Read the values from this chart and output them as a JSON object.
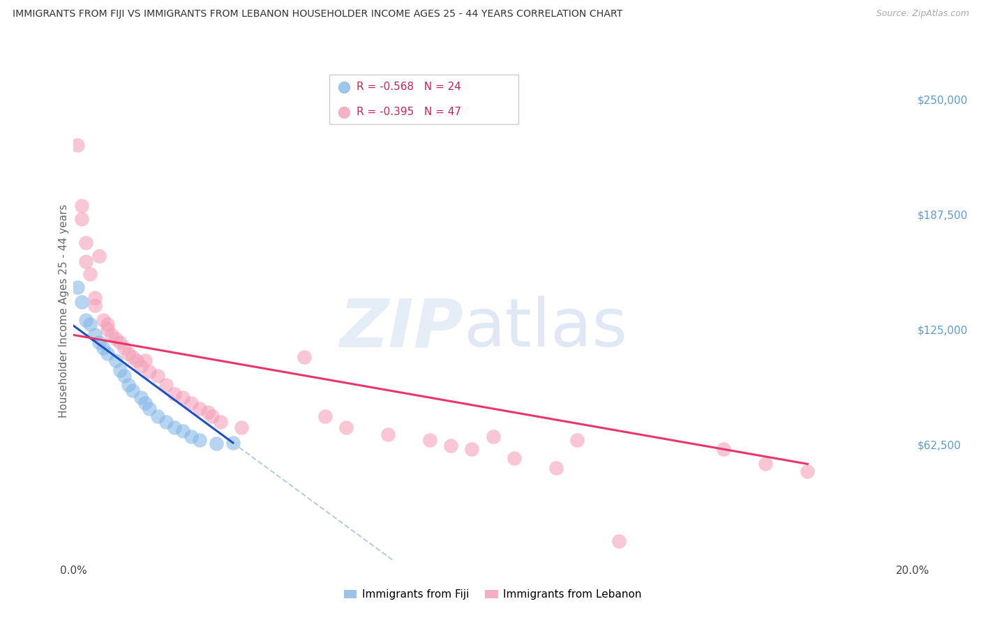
{
  "title": "IMMIGRANTS FROM FIJI VS IMMIGRANTS FROM LEBANON HOUSEHOLDER INCOME AGES 25 - 44 YEARS CORRELATION CHART",
  "source": "Source: ZipAtlas.com",
  "ylabel": "Householder Income Ages 25 - 44 years",
  "xlim": [
    0.0,
    0.2
  ],
  "ylim": [
    0,
    270000
  ],
  "yticks": [
    0,
    62500,
    125000,
    187500,
    250000
  ],
  "ytick_labels": [
    "",
    "$62,500",
    "$125,000",
    "$187,500",
    "$250,000"
  ],
  "xticks": [
    0.0,
    0.04,
    0.08,
    0.12,
    0.16,
    0.2
  ],
  "xtick_labels": [
    "0.0%",
    "",
    "",
    "",
    "",
    "20.0%"
  ],
  "fiji_R": -0.568,
  "fiji_N": 24,
  "lebanon_R": -0.395,
  "lebanon_N": 47,
  "fiji_color": "#88b8e8",
  "lebanon_color": "#f4a0b8",
  "fiji_line_color": "#1a50cc",
  "lebanon_line_color": "#e8356a",
  "dashed_line_color": "#b8cce0",
  "fiji_x": [
    0.001,
    0.002,
    0.003,
    0.004,
    0.005,
    0.006,
    0.007,
    0.008,
    0.01,
    0.011,
    0.012,
    0.013,
    0.014,
    0.016,
    0.017,
    0.018,
    0.02,
    0.022,
    0.024,
    0.026,
    0.028,
    0.03,
    0.034,
    0.038
  ],
  "fiji_y": [
    148000,
    140000,
    130000,
    128000,
    122000,
    118000,
    115000,
    112000,
    108000,
    103000,
    100000,
    95000,
    92000,
    88000,
    85000,
    82000,
    78000,
    75000,
    72000,
    70000,
    67000,
    65000,
    63000,
    63500
  ],
  "lebanon_x": [
    0.001,
    0.002,
    0.002,
    0.003,
    0.003,
    0.004,
    0.005,
    0.005,
    0.006,
    0.007,
    0.008,
    0.008,
    0.009,
    0.01,
    0.011,
    0.012,
    0.013,
    0.014,
    0.015,
    0.016,
    0.017,
    0.018,
    0.02,
    0.022,
    0.024,
    0.026,
    0.028,
    0.03,
    0.032,
    0.033,
    0.035,
    0.04,
    0.055,
    0.06,
    0.065,
    0.075,
    0.085,
    0.09,
    0.095,
    0.1,
    0.105,
    0.115,
    0.12,
    0.13,
    0.155,
    0.165,
    0.175
  ],
  "lebanon_y": [
    225000,
    192000,
    185000,
    172000,
    162000,
    155000,
    142000,
    138000,
    165000,
    130000,
    128000,
    125000,
    122000,
    120000,
    118000,
    115000,
    112000,
    110000,
    108000,
    105000,
    108000,
    102000,
    100000,
    95000,
    90000,
    88000,
    85000,
    82000,
    80000,
    78000,
    75000,
    72000,
    110000,
    78000,
    72000,
    68000,
    65000,
    62000,
    60000,
    67000,
    55000,
    50000,
    65000,
    10000,
    60000,
    52000,
    48000
  ]
}
